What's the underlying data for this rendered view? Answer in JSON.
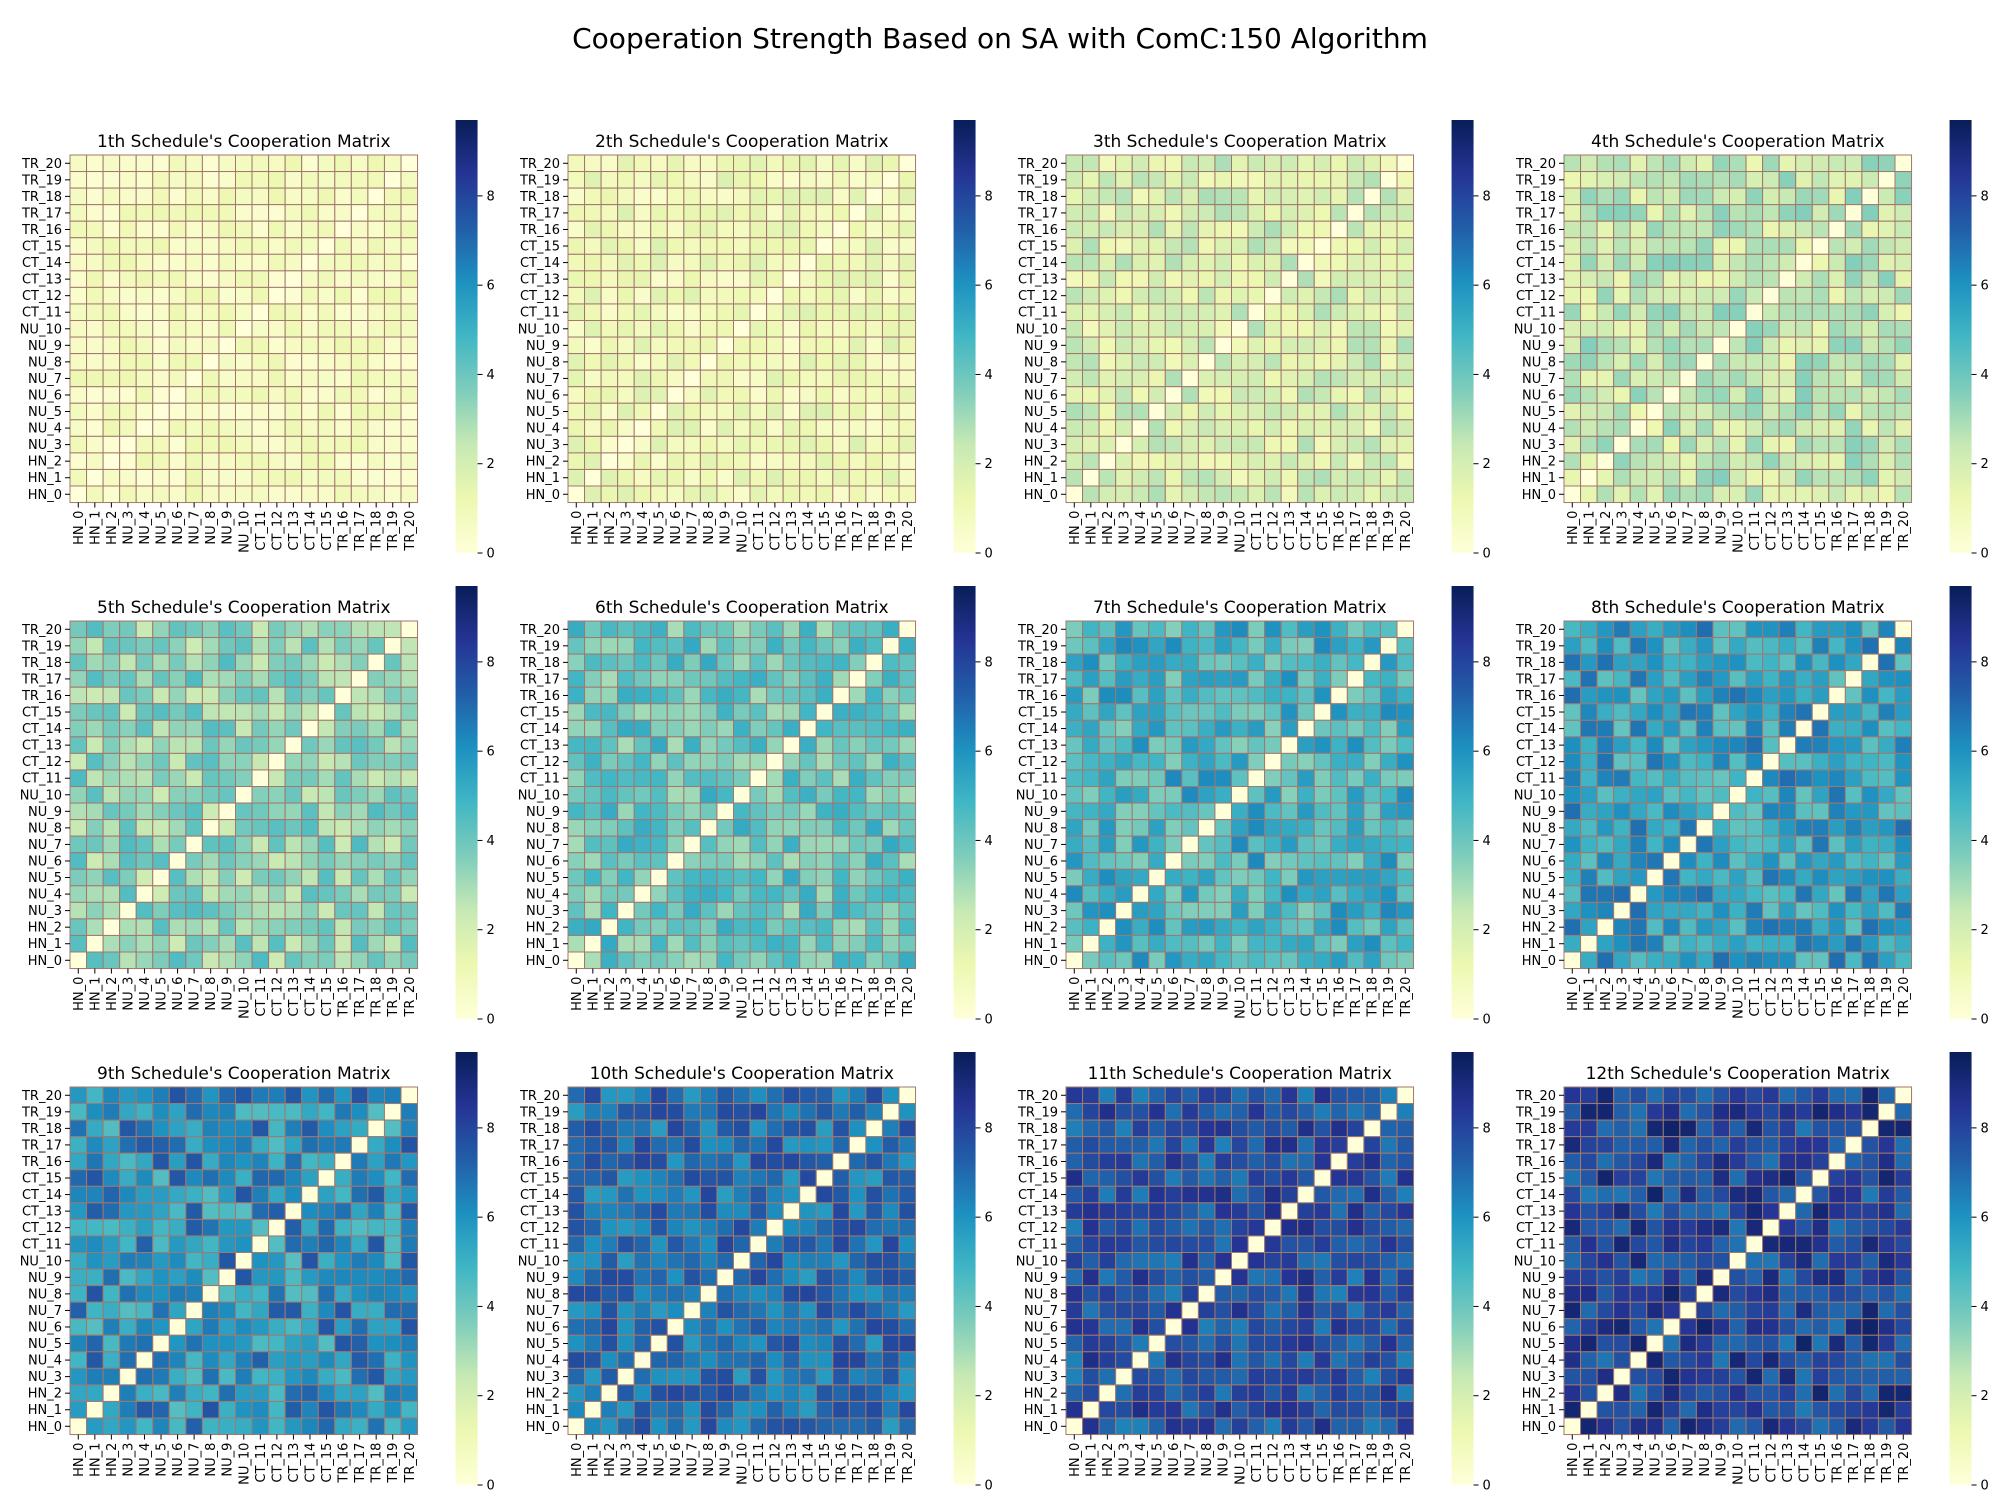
{
  "title": "Cooperation Strength Based on SA with ComC:150 Algorithm",
  "colormap": "YlGnBu",
  "colorbar_ticks": [
    "0",
    "2",
    "4",
    "6",
    "8"
  ],
  "grid_line_color": "#a0786e",
  "chart_data": {
    "type": "heatmap",
    "nodes": [
      "HN_0",
      "HN_1",
      "HN_2",
      "NU_3",
      "NU_4",
      "NU_5",
      "NU_6",
      "NU_7",
      "NU_8",
      "NU_9",
      "NU_10",
      "CT_11",
      "CT_12",
      "CT_13",
      "CT_14",
      "CT_15",
      "TR_16",
      "TR_17",
      "TR_18",
      "TR_19",
      "TR_20"
    ],
    "value_range": [
      0,
      9.7
    ],
    "diagonal": 0,
    "panels": [
      {
        "title": "1th Schedule's Cooperation Matrix",
        "mean_offdiag": 0.7,
        "spread": 0.25
      },
      {
        "title": "2th Schedule's Cooperation Matrix",
        "mean_offdiag": 1.1,
        "spread": 0.35
      },
      {
        "title": "3th Schedule's Cooperation Matrix",
        "mean_offdiag": 1.9,
        "spread": 0.5
      },
      {
        "title": "4th Schedule's Cooperation Matrix",
        "mean_offdiag": 2.4,
        "spread": 0.6
      },
      {
        "title": "5th Schedule's Cooperation Matrix",
        "mean_offdiag": 3.4,
        "spread": 0.6
      },
      {
        "title": "6th Schedule's Cooperation Matrix",
        "mean_offdiag": 4.1,
        "spread": 0.6
      },
      {
        "title": "7th Schedule's Cooperation Matrix",
        "mean_offdiag": 4.9,
        "spread": 0.7
      },
      {
        "title": "8th Schedule's Cooperation Matrix",
        "mean_offdiag": 5.5,
        "spread": 0.7
      },
      {
        "title": "9th Schedule's Cooperation Matrix",
        "mean_offdiag": 6.0,
        "spread": 0.8
      },
      {
        "title": "10th Schedule's Cooperation Matrix",
        "mean_offdiag": 6.8,
        "spread": 0.6
      },
      {
        "title": "11th Schedule's Cooperation Matrix",
        "mean_offdiag": 7.6,
        "spread": 0.6
      },
      {
        "title": "12th Schedule's Cooperation Matrix",
        "mean_offdiag": 8.0,
        "spread": 0.7
      }
    ]
  }
}
